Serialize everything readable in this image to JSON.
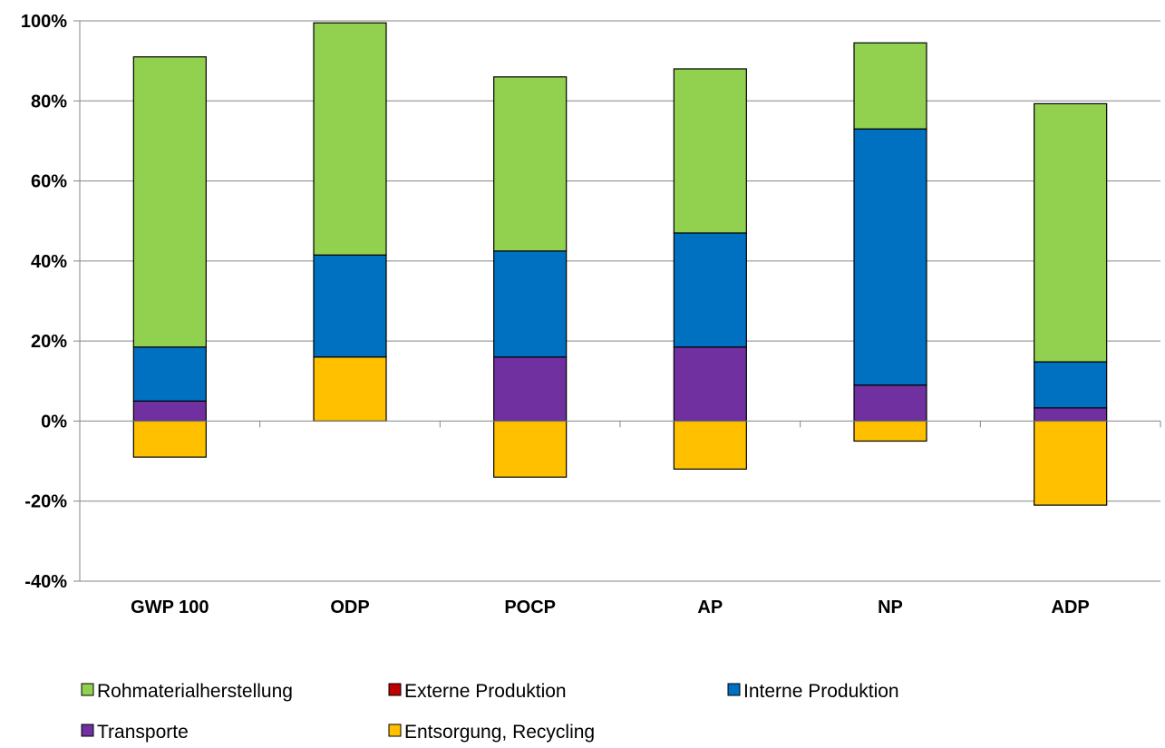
{
  "chart_data": {
    "type": "bar",
    "stacked": true,
    "categories": [
      "GWP 100",
      "ODP",
      "POCP",
      "AP",
      "NP",
      "ADP"
    ],
    "series": [
      {
        "name": "Rohmaterialherstellung",
        "color": "#92d050",
        "values": [
          72.5,
          58,
          43.5,
          41,
          21.5,
          64.5
        ]
      },
      {
        "name": "Externe Produktion",
        "color": "#c00000",
        "values": [
          0,
          0,
          0,
          0,
          0,
          0
        ]
      },
      {
        "name": "Interne Produktion",
        "color": "#0070c0",
        "values": [
          13.5,
          25.5,
          26.5,
          28.5,
          64,
          11.5
        ]
      },
      {
        "name": "Transporte",
        "color": "#7030a0",
        "values": [
          5,
          0,
          16,
          18.5,
          9,
          3.3
        ]
      },
      {
        "name": "Entsorgung, Recycling",
        "color": "#ffc000",
        "values": [
          -9,
          16,
          -14,
          -12,
          -5,
          -21
        ]
      }
    ],
    "ylim": [
      -40,
      100
    ],
    "yticks": [
      "-40%",
      "-20%",
      "0%",
      "20%",
      "40%",
      "60%",
      "80%",
      "100%"
    ],
    "ytick_values": [
      -40,
      -20,
      0,
      20,
      40,
      60,
      80,
      100
    ],
    "grid": true,
    "legend_position": "bottom",
    "title": "",
    "xlabel": "",
    "ylabel": ""
  }
}
